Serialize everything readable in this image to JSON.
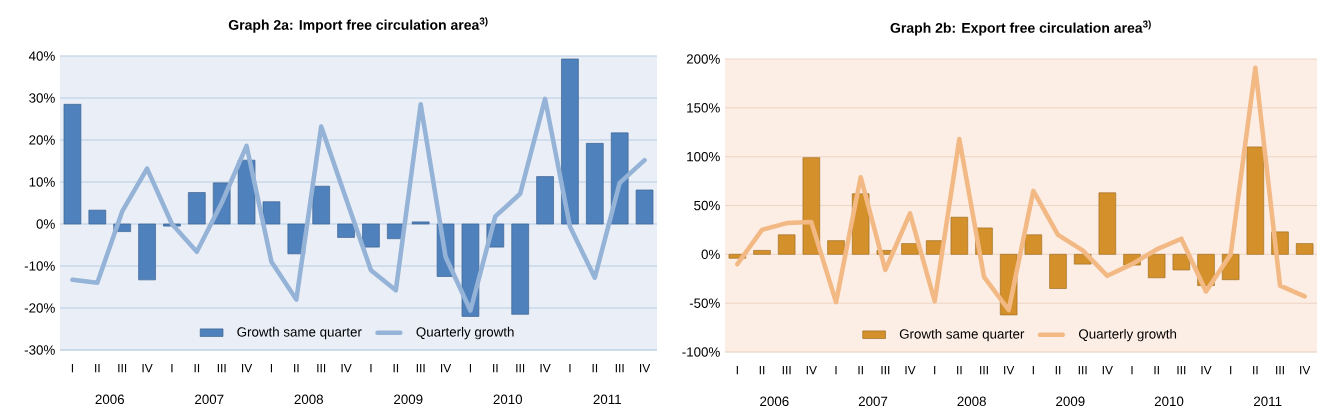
{
  "chart_data": [
    {
      "type": "bar",
      "title": "Graph 2a: Import free circulation area$^{3)}$",
      "categories": [
        "I",
        "II",
        "III",
        "IV",
        "I",
        "II",
        "III",
        "IV",
        "I",
        "II",
        "III",
        "IV",
        "I",
        "II",
        "III",
        "IV",
        "I",
        "II",
        "III",
        "IV",
        "I",
        "II",
        "III",
        "IV"
      ],
      "series": [
        {
          "name": "Growth same quarter",
          "color": "#4f81bd",
          "values": [
            28.5,
            3.3,
            -1.8,
            -13.3,
            -0.5,
            7.5,
            9.8,
            15.2,
            5.3,
            -7.1,
            9,
            -3.2,
            -5.5,
            -3.5,
            0.5,
            -12.5,
            -22,
            -5.5,
            -21.5,
            11.3,
            39.3,
            19.2,
            21.7,
            8.1
          ]
        },
        {
          "name": "Quarterly growth",
          "type": "line",
          "color": "#95b3d7",
          "values": [
            -13.3,
            -14,
            3,
            13.2,
            0,
            -6.6,
            5,
            18.6,
            -9,
            -18,
            23.2,
            6,
            -11,
            -15.8,
            28.5,
            -7.8,
            -20.6,
            1.8,
            7.2,
            29.8,
            -0.6,
            -12.8,
            9.8,
            15.2
          ]
        }
      ],
      "ylim": [
        -30,
        40
      ],
      "yticks": [
        {
          "value": -30,
          "label": "-30%"
        },
        {
          "value": -20,
          "label": "-20%"
        },
        {
          "value": -10,
          "label": "-10%"
        },
        {
          "value": 0,
          "label": "0%"
        },
        {
          "value": 10,
          "label": "10%"
        },
        {
          "value": 20,
          "label": "20%"
        },
        {
          "value": 30,
          "label": "30%"
        },
        {
          "value": 40,
          "label": "40%"
        }
      ],
      "grid": "y",
      "legend": "bottom",
      "annotations": [
        "2006",
        "2007",
        "2008",
        "2009",
        "2010",
        "2011"
      ]
    },
    {
      "type": "bar",
      "title": "Graph 2b: Export free circulation area$^{3)}$",
      "categories": [
        "I",
        "II",
        "III",
        "IV",
        "I",
        "II",
        "III",
        "IV",
        "I",
        "II",
        "III",
        "IV",
        "I",
        "II",
        "III",
        "IV",
        "I",
        "II",
        "III",
        "IV",
        "I",
        "II",
        "III",
        "IV"
      ],
      "series": [
        {
          "name": "Growth same quarter",
          "color": "#d4912b",
          "values": [
            -4,
            4,
            20,
            99,
            14,
            62,
            4,
            11,
            14,
            38,
            27,
            -62,
            20,
            -35,
            -10,
            63,
            -11,
            -24,
            -16,
            -32,
            -26,
            110,
            23,
            11
          ]
        },
        {
          "name": "Quarterly growth",
          "type": "line",
          "color": "#f2b985",
          "values": [
            -10,
            25,
            32,
            33,
            -49,
            79,
            -16,
            42,
            -48,
            118,
            -23,
            -57,
            65,
            20,
            4,
            -22,
            -10,
            5,
            16,
            -38,
            0,
            191,
            -32,
            -43
          ]
        }
      ],
      "ylim": [
        -100,
        200
      ],
      "yticks": [
        {
          "value": -100,
          "label": "-100%"
        },
        {
          "value": -50,
          "label": "-50%"
        },
        {
          "value": 0,
          "label": "0%"
        },
        {
          "value": 50,
          "label": "50%"
        },
        {
          "value": 100,
          "label": "100%"
        },
        {
          "value": 150,
          "label": "150%"
        },
        {
          "value": 200,
          "label": "200%"
        }
      ],
      "grid": "y",
      "legend": "bottom",
      "annotations": [
        "2006",
        "2007",
        "2008",
        "2009",
        "2010",
        "2011"
      ]
    }
  ]
}
